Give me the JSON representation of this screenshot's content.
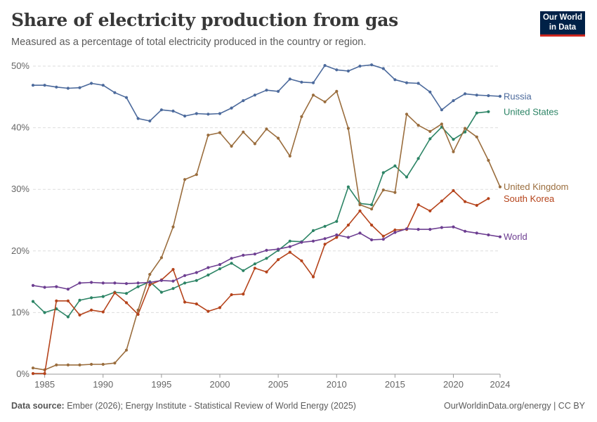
{
  "header": {
    "title": "Share of electricity production from gas",
    "subtitle": "Measured as a percentage of total electricity produced in the country or region."
  },
  "logo": {
    "line1": "Our World",
    "line2": "in Data"
  },
  "footer": {
    "source_label": "Data source:",
    "source_text": "Ember (2026); Energy Institute - Statistical Review of World Energy (2025)",
    "right_text": "OurWorldinData.org/energy | CC BY"
  },
  "chart_data": {
    "type": "line",
    "title": "Share of electricity production from gas",
    "ylim": [
      0,
      50
    ],
    "xlim": [
      1984,
      2024
    ],
    "y_ticks": [
      0,
      10,
      20,
      30,
      40,
      50
    ],
    "y_tick_labels": [
      "0%",
      "10%",
      "20%",
      "30%",
      "40%",
      "50%"
    ],
    "x_ticks": [
      1985,
      1990,
      1995,
      2000,
      2005,
      2010,
      2015,
      2020,
      2024
    ],
    "x_tick_labels": [
      "1985",
      "1990",
      "1995",
      "2000",
      "2005",
      "2010",
      "2015",
      "2020",
      "2024"
    ],
    "grid": "horizontal dashed",
    "legend": "right, labels at line ends",
    "x": [
      1984,
      1985,
      1986,
      1987,
      1988,
      1989,
      1990,
      1991,
      1992,
      1993,
      1994,
      1995,
      1996,
      1997,
      1998,
      1999,
      2000,
      2001,
      2002,
      2003,
      2004,
      2005,
      2006,
      2007,
      2008,
      2009,
      2010,
      2011,
      2012,
      2013,
      2014,
      2015,
      2016,
      2017,
      2018,
      2019,
      2020,
      2021,
      2022,
      2023,
      2024
    ],
    "series": [
      {
        "name": "Russia",
        "color": "#4c6a9c",
        "values": [
          46.9,
          46.9,
          46.6,
          46.4,
          46.5,
          47.2,
          46.9,
          45.7,
          44.9,
          41.5,
          41.1,
          42.9,
          42.7,
          41.9,
          42.3,
          42.2,
          42.3,
          43.2,
          44.4,
          45.3,
          46.1,
          45.9,
          47.9,
          47.4,
          47.3,
          50.1,
          49.4,
          49.2,
          50.0,
          50.2,
          49.6,
          47.8,
          47.3,
          47.2,
          45.8,
          42.9,
          44.4,
          45.5,
          45.3,
          45.2,
          45.1
        ]
      },
      {
        "name": "United States",
        "color": "#2c8465",
        "values": [
          11.8,
          10.0,
          10.6,
          9.3,
          12.0,
          12.4,
          12.6,
          13.3,
          13.1,
          14.2,
          15.0,
          13.3,
          13.9,
          14.8,
          15.2,
          16.1,
          17.1,
          18.0,
          16.8,
          17.9,
          18.8,
          20.1,
          21.6,
          21.5,
          23.3,
          24.0,
          24.8,
          30.4,
          27.7,
          27.5,
          32.7,
          33.8,
          32.0,
          35.0,
          38.2,
          40.1,
          38.1,
          39.3,
          42.4,
          42.6,
          null
        ]
      },
      {
        "name": "United Kingdom",
        "color": "#9a6d3d",
        "values": [
          1.0,
          0.7,
          1.5,
          1.5,
          1.5,
          1.6,
          1.6,
          1.8,
          3.9,
          10.4,
          16.2,
          18.9,
          23.9,
          31.6,
          32.4,
          38.8,
          39.2,
          37.0,
          39.3,
          37.4,
          39.8,
          38.3,
          35.4,
          41.8,
          45.3,
          44.2,
          45.9,
          39.9,
          27.5,
          26.8,
          29.9,
          29.5,
          42.2,
          40.4,
          39.4,
          40.6,
          36.1,
          39.9,
          38.5,
          34.7,
          30.4
        ]
      },
      {
        "name": "South Korea",
        "color": "#b5431b",
        "values": [
          0.1,
          0.1,
          11.9,
          11.9,
          9.6,
          10.4,
          10.1,
          13.2,
          11.6,
          9.7,
          14.5,
          15.3,
          17.0,
          11.7,
          11.4,
          10.2,
          10.8,
          12.9,
          13.0,
          17.2,
          16.6,
          18.6,
          19.8,
          18.4,
          15.8,
          21.1,
          22.2,
          24.2,
          26.5,
          24.2,
          22.4,
          23.4,
          23.5,
          27.5,
          26.5,
          28.1,
          29.8,
          28.0,
          27.4,
          28.5,
          null
        ]
      },
      {
        "name": "World",
        "color": "#6d3e91",
        "values": [
          14.4,
          14.1,
          14.2,
          13.8,
          14.8,
          14.9,
          14.8,
          14.8,
          14.7,
          14.8,
          14.9,
          15.2,
          15.1,
          16.0,
          16.5,
          17.3,
          17.8,
          18.8,
          19.3,
          19.5,
          20.1,
          20.3,
          20.7,
          21.4,
          21.6,
          22.0,
          22.6,
          22.2,
          22.9,
          21.8,
          21.9,
          23.0,
          23.6,
          23.5,
          23.5,
          23.8,
          23.9,
          23.2,
          22.9,
          22.6,
          22.3
        ]
      }
    ]
  }
}
